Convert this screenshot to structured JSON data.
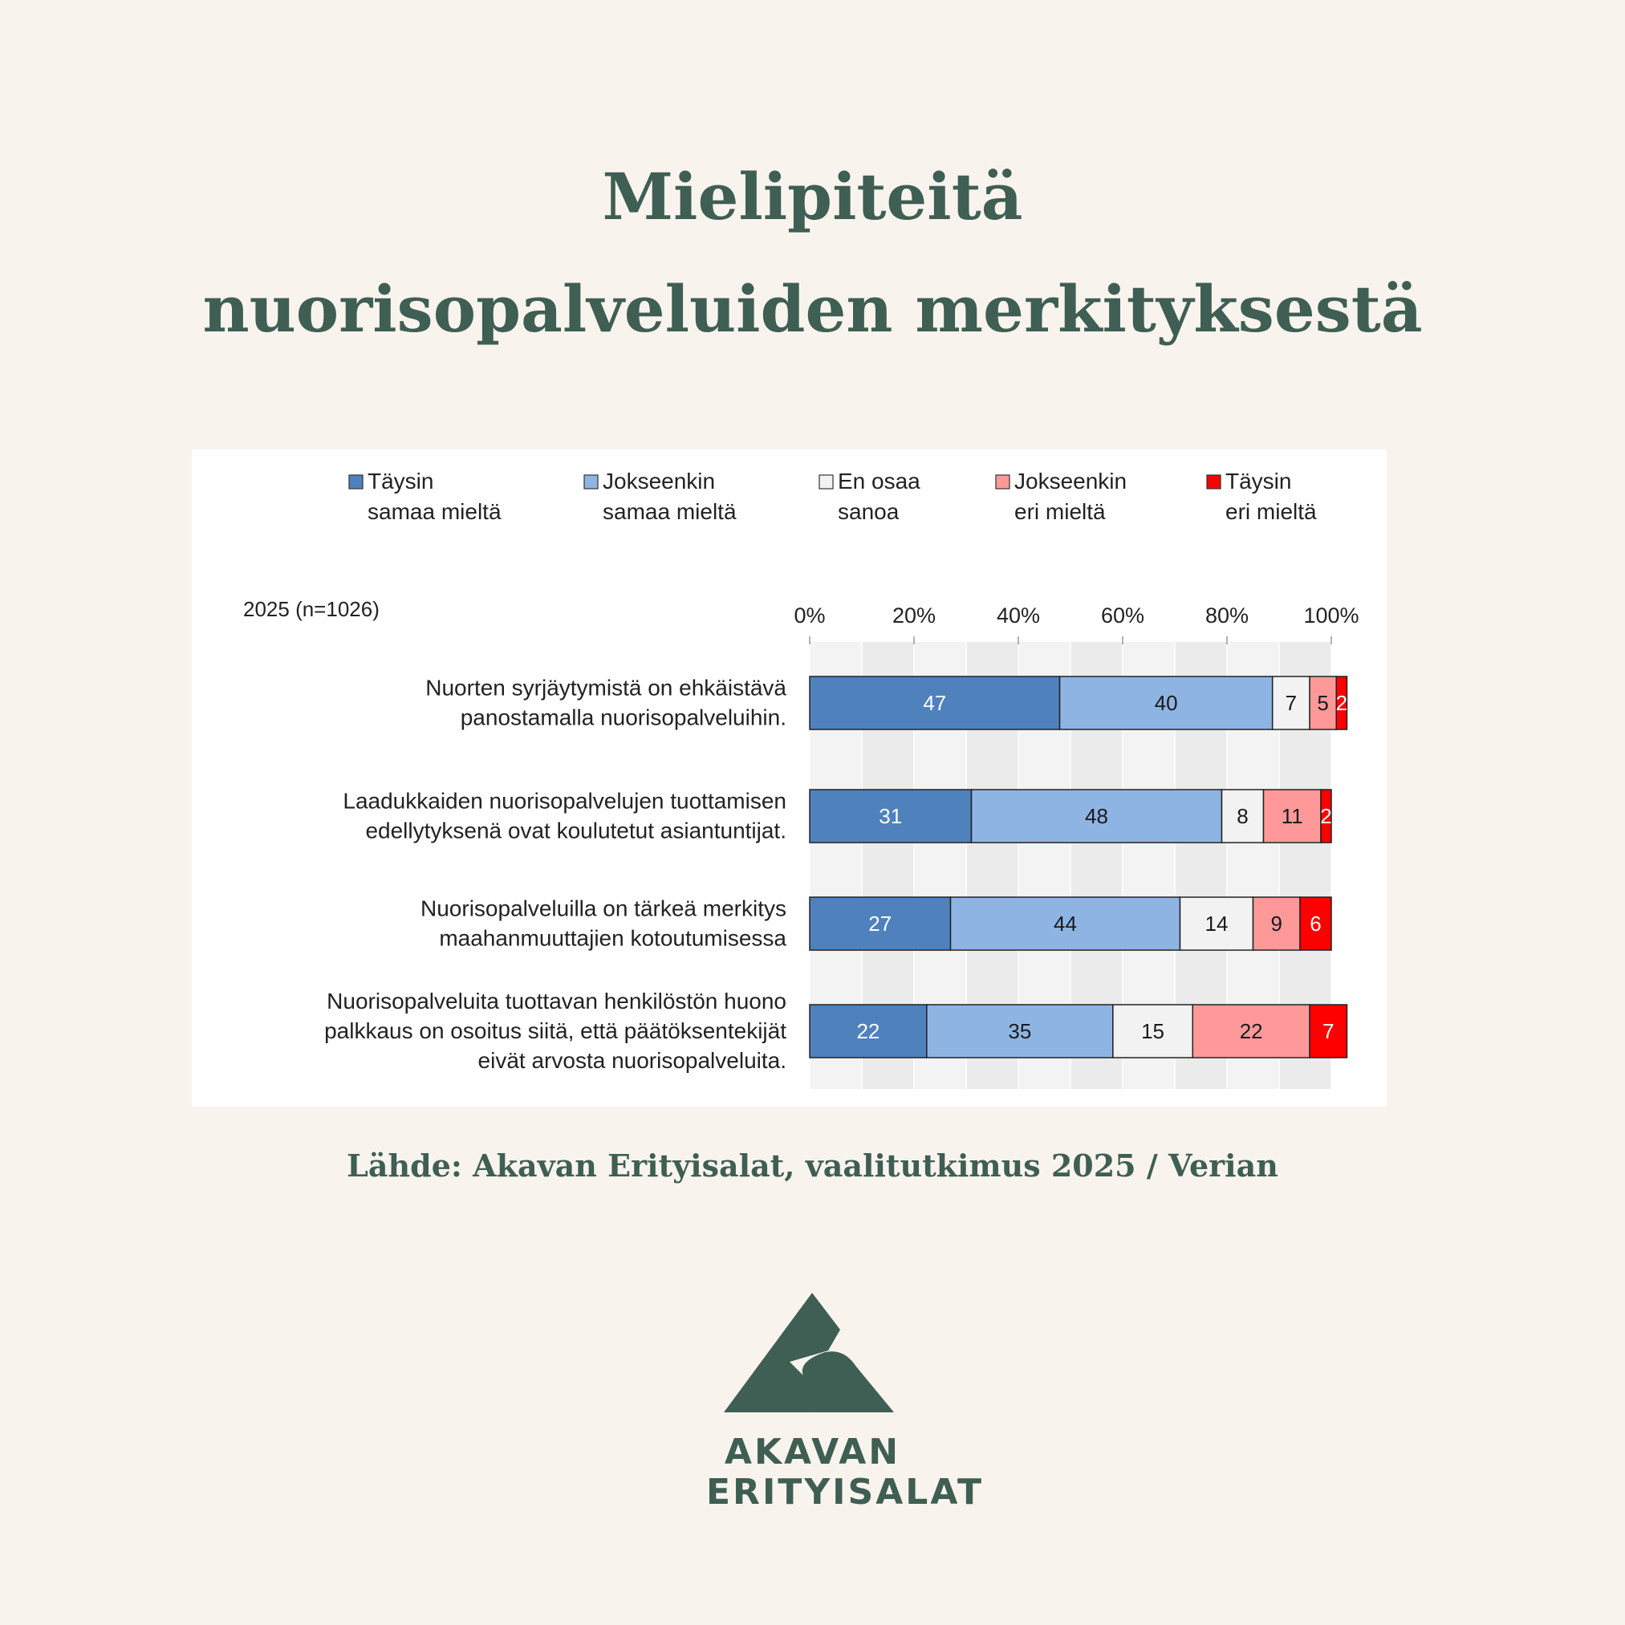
{
  "page": {
    "title_line1": "Mielipiteitä",
    "title_line2": "nuorisopalveluiden merkityksestä",
    "source": "Lähde: Akavan Erityisalat, vaalitutkimus 2025 / Verian",
    "logo_line1": "AKAVAN",
    "logo_line2": "ERITYISALAT",
    "text_color": "#3f5e54",
    "background_color": "#f8f4ed"
  },
  "chart_data": {
    "type": "bar",
    "orientation": "horizontal",
    "stacked": true,
    "sample_label": "2025 (n=1026)",
    "x_ticks": [
      "0%",
      "20%",
      "40%",
      "60%",
      "80%",
      "100%"
    ],
    "xlim": [
      0,
      100
    ],
    "grid": true,
    "legend_position": "top",
    "legend": [
      {
        "line1": "Täysin",
        "line2": "samaa mieltä"
      },
      {
        "line1": "Jokseenkin",
        "line2": "samaa mieltä"
      },
      {
        "line1": "En osaa",
        "line2": "sanoa"
      },
      {
        "line1": "Jokseenkin",
        "line2": "eri mieltä"
      },
      {
        "line1": "Täysin",
        "line2": "eri mieltä"
      }
    ],
    "series_colors": [
      "#4f81bd",
      "#8eb4e3",
      "#f2f2f2",
      "#ff9999",
      "#ff0000"
    ],
    "label_colors": [
      "#ffffff",
      "#1a1a1a",
      "#1a1a1a",
      "#1a1a1a",
      "#ffffff"
    ],
    "categories": [
      [
        "Nuorten syrjäytymistä on ehkäistävä",
        "panostamalla nuorisopalveluihin."
      ],
      [
        "Laadukkaiden nuorisopalvelujen tuottamisen",
        "edellytyksenä ovat koulutetut asiantuntijat."
      ],
      [
        "Nuorisopalveluilla on tärkeä merkitys",
        "maahanmuuttajien kotoutumisessa"
      ],
      [
        "Nuorisopalveluita tuottavan henkilöstön huono",
        "palkkaus on osoitus siitä, että päätöksentekijät",
        "eivät arvosta nuorisopalveluita."
      ]
    ],
    "values": [
      [
        47,
        40,
        7,
        5,
        2
      ],
      [
        31,
        48,
        8,
        11,
        2
      ],
      [
        27,
        44,
        14,
        9,
        6
      ],
      [
        22,
        35,
        15,
        22,
        7
      ]
    ]
  }
}
